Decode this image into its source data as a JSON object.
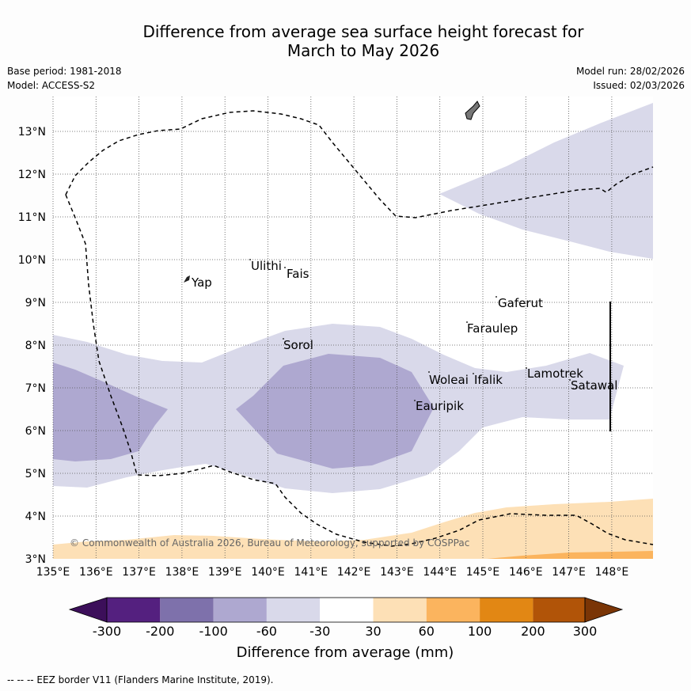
{
  "title_line1": "Difference from average sea surface height forecast for",
  "title_line2": "March to May 2026",
  "meta": {
    "base_period": "Base period: 1981-2018",
    "model": "Model: ACCESS-S2",
    "model_run": "Model run: 28/02/2026",
    "issued": "Issued: 02/03/2026"
  },
  "axes": {
    "lon_ticks": [
      "135°E",
      "136°E",
      "137°E",
      "138°E",
      "139°E",
      "140°E",
      "141°E",
      "142°E",
      "143°E",
      "144°E",
      "145°E",
      "146°E",
      "147°E",
      "148°E"
    ],
    "lat_ticks": [
      "3°N",
      "4°N",
      "5°N",
      "6°N",
      "7°N",
      "8°N",
      "9°N",
      "10°N",
      "11°N",
      "12°N",
      "13°N"
    ]
  },
  "places": {
    "ulithi": "Ulithi",
    "fais": "Fais",
    "yap": "Yap",
    "gaferut": "Gaferut",
    "faraulep": "Faraulep",
    "sorol": "Sorol",
    "lamotrek": "Lamotrek",
    "woleai": "Woleai",
    "ifalik": "Ifalik",
    "satawal": "Satawal",
    "eauripik": "Eauripik"
  },
  "copyright": "© Commonwealth of Australia 2026, Bureau of Meteorology, supported by COSPPac",
  "colorbar": {
    "title": "Difference from average (mm)",
    "labels": [
      "-300",
      "-200",
      "-100",
      "-60",
      "-30",
      "30",
      "60",
      "100",
      "200",
      "300"
    ],
    "colors": [
      "#3c0f5a",
      "#54207f",
      "#7e71ab",
      "#aea8d0",
      "#d9d9ea",
      "#ffffff",
      "#fde0b6",
      "#fbb45e",
      "#e28714",
      "#b15408",
      "#7a3506"
    ]
  },
  "footer": "--  --  -- EEZ border V11 (Flanders Marine Institute, 2019)."
}
